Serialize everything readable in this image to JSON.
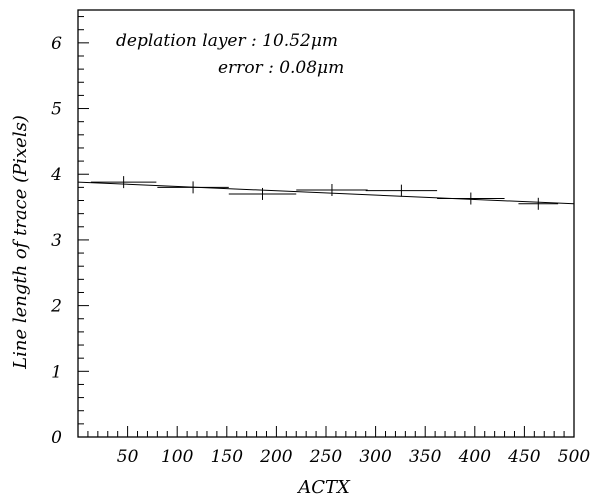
{
  "chart_data": {
    "type": "scatter",
    "title": "",
    "xlabel": "ACTX",
    "ylabel": "Line length of trace (Pixels)",
    "xlim": [
      0,
      500
    ],
    "ylim": [
      0,
      6.5
    ],
    "x_ticks": [
      50,
      100,
      150,
      200,
      250,
      300,
      350,
      400,
      450,
      500
    ],
    "y_ticks": [
      0,
      1,
      2,
      3,
      4,
      5,
      6
    ],
    "x_minor_step": 10,
    "y_minor_step": 0.2,
    "grid": false,
    "annotations": [
      "deplation layer : 10.52μm",
      "error : 0.08μm"
    ],
    "points": [
      {
        "x": 46,
        "y": 3.88,
        "xerr": 33
      },
      {
        "x": 116,
        "y": 3.8,
        "xerr": 36
      },
      {
        "x": 186,
        "y": 3.7,
        "xerr": 34
      },
      {
        "x": 256,
        "y": 3.76,
        "xerr": 36
      },
      {
        "x": 326,
        "y": 3.75,
        "xerr": 36
      },
      {
        "x": 396,
        "y": 3.63,
        "xerr": 34
      },
      {
        "x": 464,
        "y": 3.55,
        "xerr": 20
      }
    ],
    "fit_line": {
      "x": [
        0,
        500
      ],
      "y": [
        3.88,
        3.55
      ]
    }
  }
}
